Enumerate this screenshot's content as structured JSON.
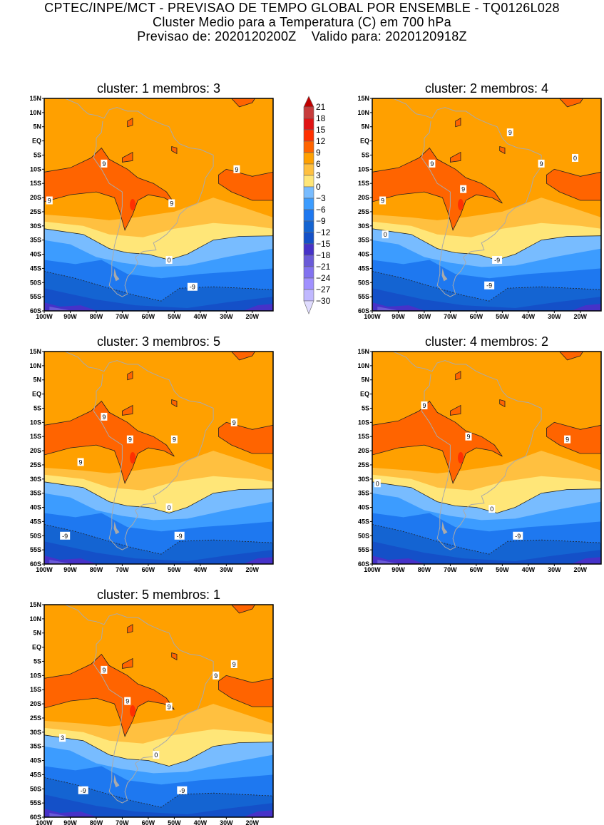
{
  "header": {
    "line1": "CPTEC/INPE/MCT - PREVISAO DE TEMPO GLOBAL POR ENSEMBLE - TQ0126L028",
    "line2": "Cluster Medio para a Temperatura (C) em 700 hPa",
    "line3": "Previsao de: 2020120200Z    Valido para: 2020120918Z"
  },
  "chart_data": {
    "type": "heatmap",
    "title": "Cluster Medio para a Temperatura (C) em 700 hPa",
    "variable": "Temperature at 700 hPa (C)",
    "lon_range": [
      -100,
      -12
    ],
    "lat_range": [
      -60,
      15
    ],
    "lat_ticks": [
      "15N",
      "10N",
      "5N",
      "EQ",
      "5S",
      "10S",
      "15S",
      "20S",
      "25S",
      "30S",
      "35S",
      "40S",
      "45S",
      "50S",
      "55S",
      "60S"
    ],
    "lon_ticks": [
      "100W",
      "90W",
      "80W",
      "70W",
      "60W",
      "50W",
      "40W",
      "30W",
      "20W"
    ],
    "colorbar": {
      "levels": [
        "21",
        "18",
        "15",
        "12",
        "9",
        "6",
        "3",
        "0",
        "-3",
        "-6",
        "-9",
        "-12",
        "-15",
        "-18",
        "-21",
        "-24",
        "-27",
        "-30"
      ],
      "colors": [
        "#c00000",
        "#c83c3c",
        "#e01414",
        "#ff3000",
        "#ff6400",
        "#ffa000",
        "#ffc040",
        "#ffe678",
        "#78bcff",
        "#3c9cff",
        "#1e78f0",
        "#1464d2",
        "#1450c8",
        "#4632c8",
        "#6a5ad8",
        "#8272f0",
        "#a090ff",
        "#c0b8ff",
        "#e0dcff"
      ]
    },
    "panels": [
      {
        "title": "cluster: 1   membros: 3",
        "cluster": 1,
        "members": 3,
        "contour_labels": [
          "9",
          "9",
          "9",
          "9",
          "0",
          "-9"
        ]
      },
      {
        "title": "cluster: 2   membros: 4",
        "cluster": 2,
        "members": 4,
        "contour_labels": [
          "9",
          "9",
          "9",
          "9",
          "9",
          "0",
          "0",
          "-9",
          "-9"
        ]
      },
      {
        "title": "cluster: 3   membros: 5",
        "cluster": 3,
        "members": 5,
        "contour_labels": [
          "9",
          "9",
          "9",
          "9",
          "9",
          "0",
          "-9",
          "-9"
        ]
      },
      {
        "title": "cluster: 4   membros: 2",
        "cluster": 4,
        "members": 2,
        "contour_labels": [
          "9",
          "9",
          "9",
          "0",
          "0",
          "-9"
        ]
      },
      {
        "title": "cluster: 5   membros: 1",
        "cluster": 5,
        "members": 1,
        "contour_labels": [
          "9",
          "9",
          "9",
          "9",
          "9",
          "3",
          "0",
          "-9",
          "-9"
        ]
      }
    ]
  }
}
